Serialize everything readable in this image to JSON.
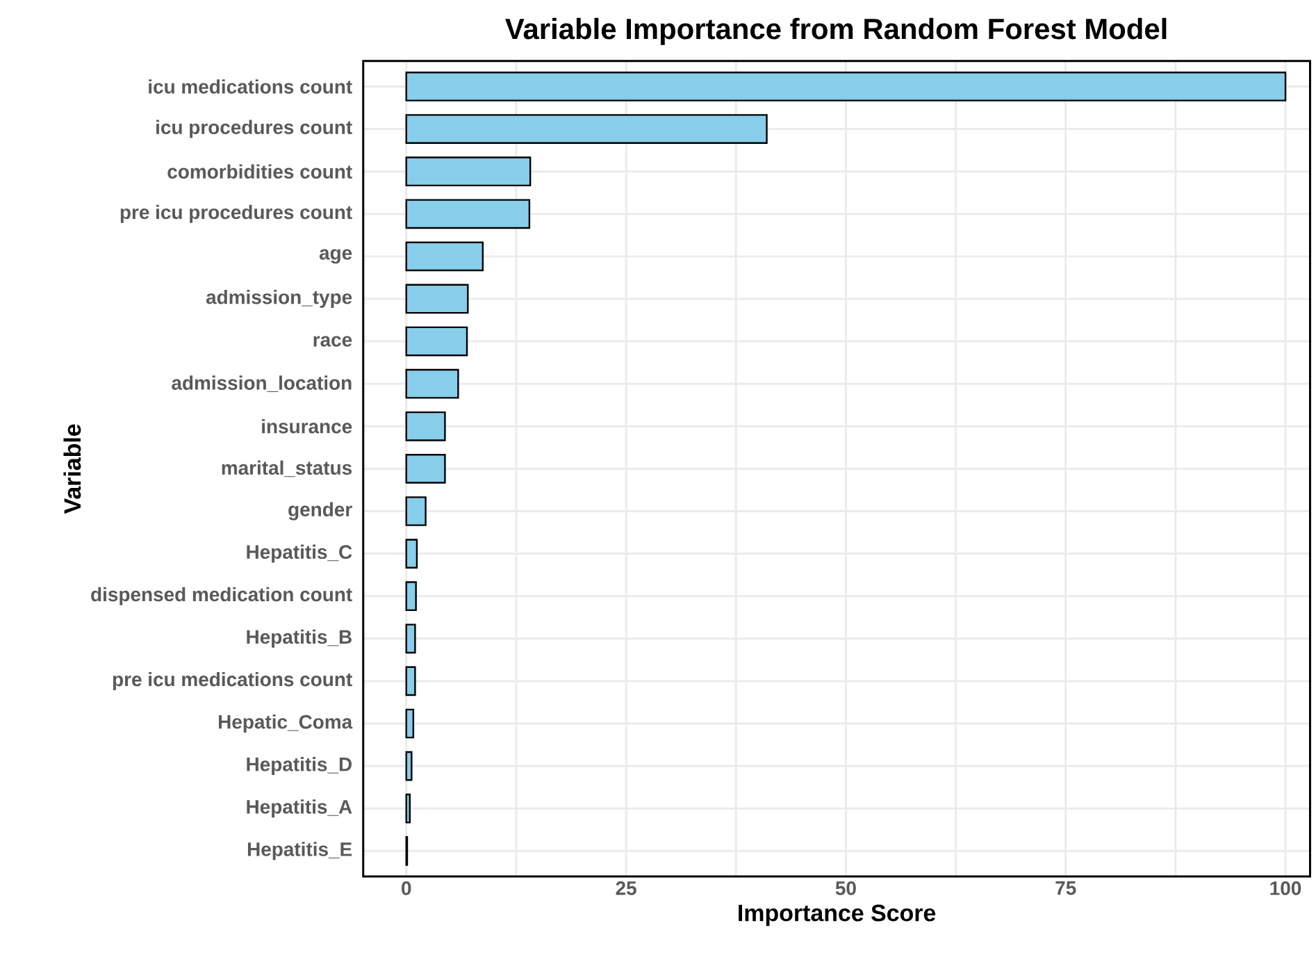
{
  "chart_data": {
    "type": "bar",
    "orientation": "horizontal",
    "title": "Variable Importance from Random Forest Model",
    "xlabel": "Importance Score",
    "ylabel": "Variable",
    "categories": [
      "icu medications count",
      "icu procedures count",
      "comorbidities count",
      "pre icu procedures count",
      "age",
      "admission_type",
      "race",
      "admission_location",
      "insurance",
      "marital_status",
      "gender",
      "Hepatitis_C",
      "dispensed medication count",
      "Hepatitis_B",
      "pre icu medications count",
      "Hepatic_Coma",
      "Hepatitis_D",
      "Hepatitis_A",
      "Hepatitis_E"
    ],
    "values": [
      100,
      41.0,
      14.1,
      14.0,
      8.7,
      7.0,
      6.9,
      5.9,
      4.4,
      4.4,
      2.2,
      1.2,
      1.1,
      1.0,
      1.0,
      0.8,
      0.6,
      0.4,
      0.1
    ],
    "color": "#87ceeb",
    "xlim": [
      -4.9,
      102.8
    ],
    "xticks": [
      0,
      25,
      50,
      75,
      100
    ],
    "grid": true
  }
}
